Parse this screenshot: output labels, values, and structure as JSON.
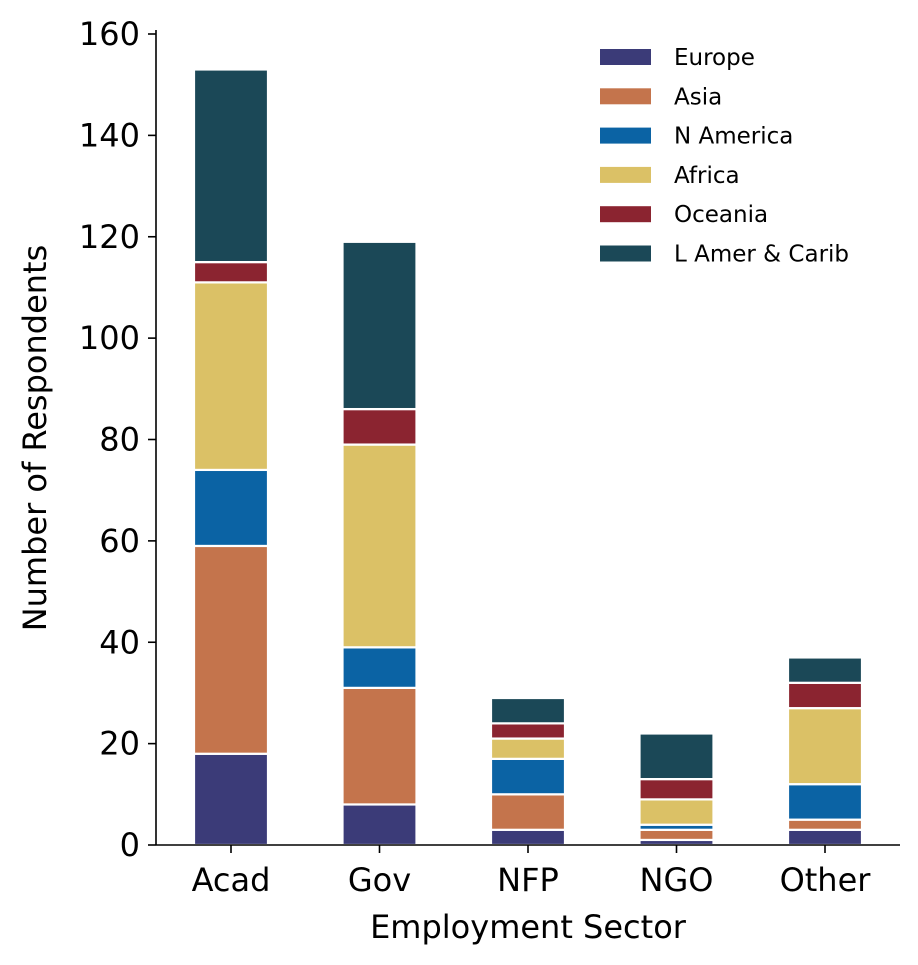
{
  "chart_data": {
    "type": "bar",
    "stacked": true,
    "title": "",
    "xlabel": "Employment Sector",
    "ylabel": "Number of Respondents",
    "categories": [
      "Acad",
      "Gov",
      "NFP",
      "NGO",
      "Other"
    ],
    "ylim": [
      0,
      160
    ],
    "yticks": [
      0,
      20,
      40,
      60,
      80,
      100,
      120,
      140,
      160
    ],
    "legend_position": "top-right",
    "grid": false,
    "series": [
      {
        "name": "Europe",
        "color": "#3b3b78",
        "values": [
          18,
          8,
          3,
          1,
          3
        ]
      },
      {
        "name": "Asia",
        "color": "#c4744c",
        "values": [
          41,
          23,
          7,
          2,
          2
        ]
      },
      {
        "name": "N America",
        "color": "#0b63a4",
        "values": [
          15,
          8,
          7,
          1,
          7
        ]
      },
      {
        "name": "Africa",
        "color": "#dbc166",
        "values": [
          37,
          40,
          4,
          5,
          15
        ]
      },
      {
        "name": "Oceania",
        "color": "#8b2430",
        "values": [
          4,
          7,
          3,
          4,
          5
        ]
      },
      {
        "name": "L Amer & Carib",
        "color": "#1b4857",
        "values": [
          38,
          33,
          5,
          9,
          5
        ]
      }
    ]
  }
}
